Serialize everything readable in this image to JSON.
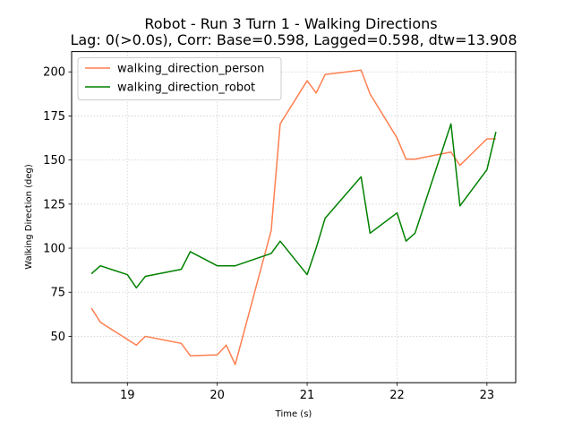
{
  "chart_data": {
    "type": "line",
    "title": "Robot - Run 3 Turn 1 - Walking Directions",
    "subtitle": "Lag: 0(>0.0s), Corr: Base=0.598, Lagged=0.598, dtw=13.908",
    "xlabel": "Time (s)",
    "ylabel": "Walking Direction (deg)",
    "xlim": [
      18.38,
      23.32
    ],
    "ylim": [
      23.7,
      211.5
    ],
    "x_ticks": [
      19,
      20,
      21,
      22,
      23
    ],
    "y_ticks": [
      50,
      75,
      100,
      125,
      150,
      175,
      200
    ],
    "grid": true,
    "legend_position": "upper-left",
    "series": [
      {
        "name": "walking_direction_person",
        "color": "#ff7f50",
        "x": [
          18.6,
          18.7,
          19.1,
          19.2,
          19.6,
          19.7,
          20.0,
          20.1,
          20.2,
          20.6,
          20.7,
          21.0,
          21.1,
          21.2,
          21.6,
          21.7,
          22.0,
          22.1,
          22.2,
          22.6,
          22.7,
          23.0,
          23.1
        ],
        "y": [
          66,
          58,
          45,
          50,
          46,
          39,
          39.5,
          45,
          34,
          110,
          170.5,
          195,
          188,
          198.5,
          201,
          187.5,
          162.5,
          150.5,
          150.5,
          154.5,
          147,
          162,
          162
        ]
      },
      {
        "name": "walking_direction_robot",
        "color": "#008000",
        "x": [
          18.6,
          18.7,
          19.0,
          19.1,
          19.2,
          19.6,
          19.7,
          20.0,
          20.2,
          20.6,
          20.7,
          21.0,
          21.1,
          21.2,
          21.6,
          21.7,
          22.0,
          22.1,
          22.2,
          22.6,
          22.7,
          23.0,
          23.1
        ],
        "y": [
          85.5,
          90,
          85,
          77.5,
          84,
          88,
          98,
          90,
          90,
          97,
          104,
          85,
          100,
          117,
          140.5,
          108.5,
          120,
          104,
          108.5,
          170.5,
          124,
          144.5,
          166
        ]
      }
    ]
  }
}
